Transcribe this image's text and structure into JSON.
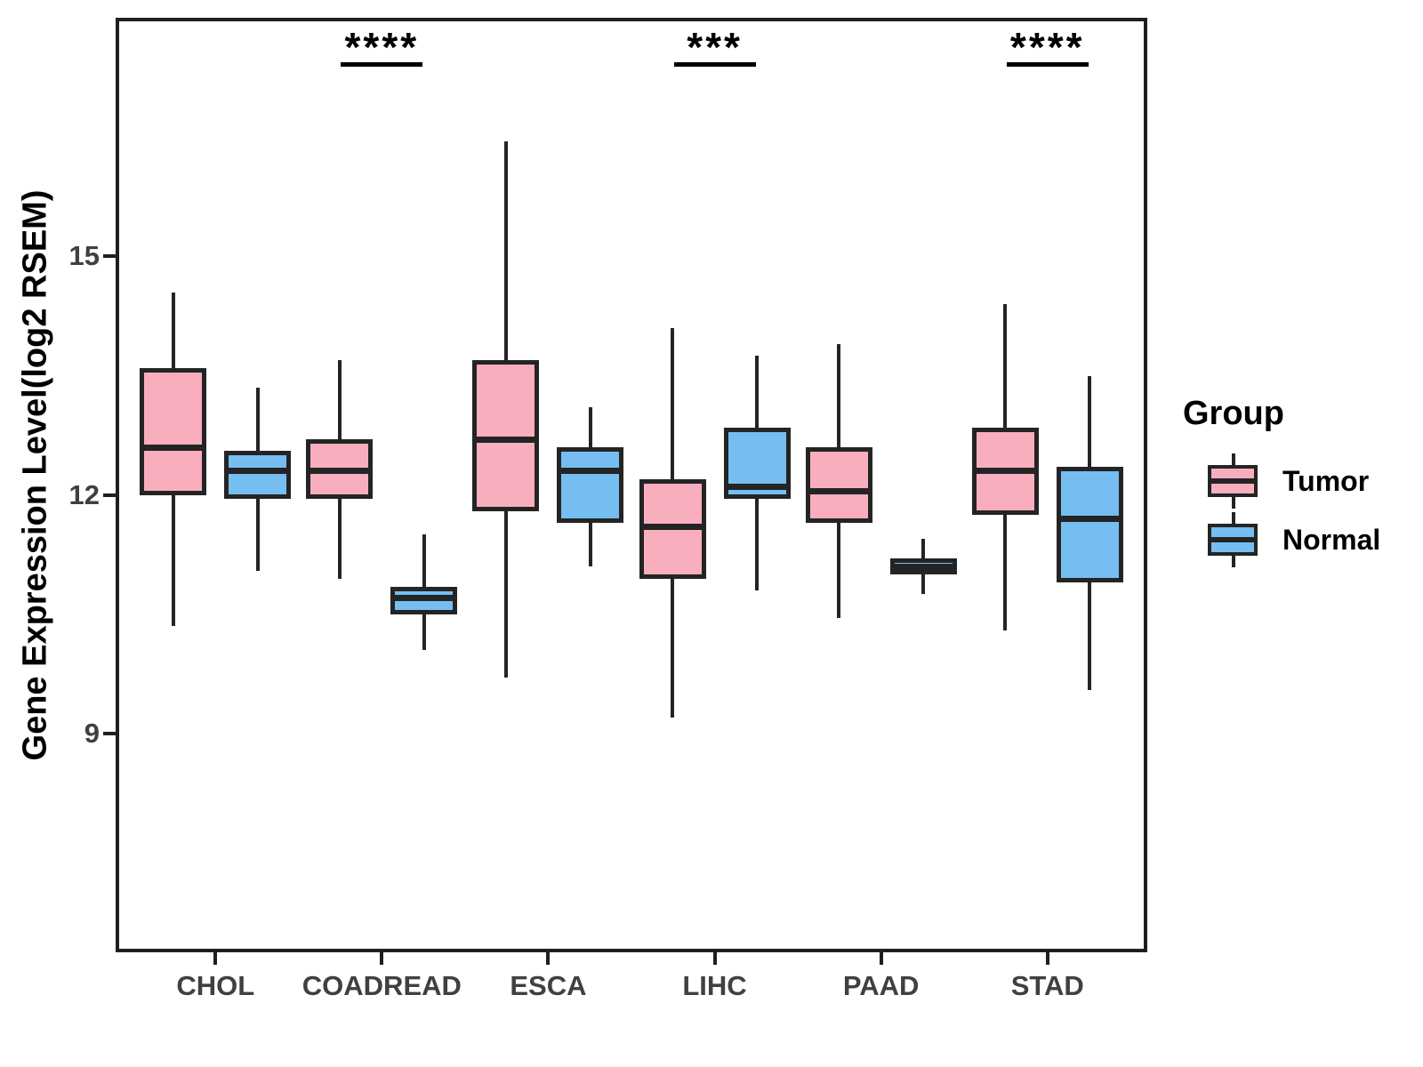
{
  "chart_data": {
    "type": "boxplot",
    "title": "",
    "xlabel": "",
    "ylabel": "Gene Expression Level(log2 RSEM)",
    "categories": [
      "CHOL",
      "COADREAD",
      "ESCA",
      "LIHC",
      "PAAD",
      "STAD"
    ],
    "ylim": [
      6.25,
      18.0
    ],
    "yticks": [
      15,
      12,
      9
    ],
    "grid": false,
    "legend": {
      "title": "Group",
      "position": "right"
    },
    "colors": {
      "tumor": "#F9AEBE",
      "normal": "#76BEF1",
      "stroke": "#242424"
    },
    "series": [
      {
        "name": "Tumor",
        "color": "#F9AEBE",
        "boxes": [
          {
            "category": "CHOL",
            "whisker_low": 10.35,
            "q1": 12.0,
            "median": 12.6,
            "q3": 13.6,
            "whisker_high": 14.55
          },
          {
            "category": "COADREAD",
            "whisker_low": 10.95,
            "q1": 11.95,
            "median": 12.3,
            "q3": 12.7,
            "whisker_high": 13.7
          },
          {
            "category": "ESCA",
            "whisker_low": 9.7,
            "q1": 11.8,
            "median": 12.7,
            "q3": 13.7,
            "whisker_high": 16.45
          },
          {
            "category": "LIHC",
            "whisker_low": 9.2,
            "q1": 10.95,
            "median": 11.6,
            "q3": 12.2,
            "whisker_high": 14.1
          },
          {
            "category": "PAAD",
            "whisker_low": 10.45,
            "q1": 11.65,
            "median": 12.05,
            "q3": 12.6,
            "whisker_high": 13.9
          },
          {
            "category": "STAD",
            "whisker_low": 10.3,
            "q1": 11.75,
            "median": 12.3,
            "q3": 12.85,
            "whisker_high": 14.4
          }
        ]
      },
      {
        "name": "Normal",
        "color": "#76BEF1",
        "boxes": [
          {
            "category": "CHOL",
            "whisker_low": 11.05,
            "q1": 11.95,
            "median": 12.3,
            "q3": 12.55,
            "whisker_high": 13.35
          },
          {
            "category": "COADREAD",
            "whisker_low": 10.05,
            "q1": 10.5,
            "median": 10.7,
            "q3": 10.85,
            "whisker_high": 11.5
          },
          {
            "category": "ESCA",
            "whisker_low": 11.1,
            "q1": 11.65,
            "median": 12.3,
            "q3": 12.6,
            "whisker_high": 13.1
          },
          {
            "category": "LIHC",
            "whisker_low": 10.8,
            "q1": 11.95,
            "median": 12.1,
            "q3": 12.85,
            "whisker_high": 13.75
          },
          {
            "category": "PAAD",
            "whisker_low": 10.75,
            "q1": 11.0,
            "median": 11.1,
            "q3": 11.2,
            "whisker_high": 11.45
          },
          {
            "category": "STAD",
            "whisker_low": 9.55,
            "q1": 10.9,
            "median": 11.7,
            "q3": 12.35,
            "whisker_high": 13.5
          }
        ]
      }
    ],
    "significance": [
      {
        "category": "COADREAD",
        "label": "****"
      },
      {
        "category": "LIHC",
        "label": "***"
      },
      {
        "category": "STAD",
        "label": "****"
      }
    ]
  }
}
